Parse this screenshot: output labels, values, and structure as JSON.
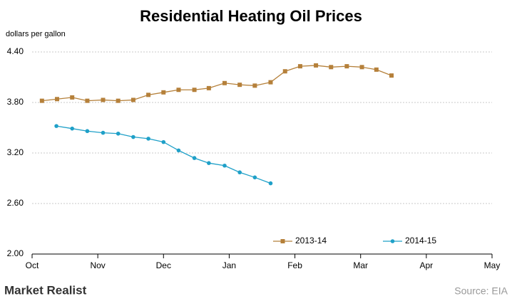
{
  "chart_data": {
    "type": "line",
    "title": "Residential Heating Oil Prices",
    "y_axis_label": "dollars per gallon",
    "xlim": [
      0,
      7
    ],
    "xticks": [
      {
        "value": 0,
        "label": "Oct"
      },
      {
        "value": 1,
        "label": "Nov"
      },
      {
        "value": 2,
        "label": "Dec"
      },
      {
        "value": 3,
        "label": "Jan"
      },
      {
        "value": 4,
        "label": "Feb"
      },
      {
        "value": 5,
        "label": "Mar"
      },
      {
        "value": 6,
        "label": "Apr"
      },
      {
        "value": 7,
        "label": "May"
      }
    ],
    "ylim": [
      2.0,
      4.4
    ],
    "yticks": [
      {
        "value": 2.0,
        "label": "2.00"
      },
      {
        "value": 2.6,
        "label": "2.60"
      },
      {
        "value": 3.2,
        "label": "3.20"
      },
      {
        "value": 3.8,
        "label": "3.80"
      },
      {
        "value": 4.4,
        "label": "4.40"
      }
    ],
    "grid": true,
    "series": [
      {
        "name": "2013-14",
        "color": "#b5803a",
        "marker": "square",
        "x": [
          0.15,
          0.38,
          0.61,
          0.84,
          1.08,
          1.31,
          1.54,
          1.77,
          2.0,
          2.23,
          2.47,
          2.69,
          2.93,
          3.16,
          3.39,
          3.63,
          3.85,
          4.08,
          4.32,
          4.55,
          4.79,
          5.02,
          5.24,
          5.47
        ],
        "values": [
          3.82,
          3.84,
          3.86,
          3.82,
          3.83,
          3.82,
          3.83,
          3.89,
          3.92,
          3.95,
          3.95,
          3.97,
          4.03,
          4.01,
          4.0,
          4.04,
          4.17,
          4.23,
          4.24,
          4.22,
          4.23,
          4.22,
          4.19,
          4.12
        ]
      },
      {
        "name": "2014-15",
        "color": "#1fa0c8",
        "marker": "circle",
        "x": [
          0.37,
          0.61,
          0.84,
          1.08,
          1.31,
          1.54,
          1.77,
          2.0,
          2.23,
          2.47,
          2.69,
          2.93,
          3.16,
          3.39,
          3.63
        ],
        "values": [
          3.52,
          3.49,
          3.46,
          3.44,
          3.43,
          3.39,
          3.37,
          3.33,
          3.23,
          3.14,
          3.08,
          3.05,
          2.97,
          2.91,
          2.84
        ]
      }
    ],
    "source": "Source: EIA",
    "watermark": "Market Realist"
  }
}
